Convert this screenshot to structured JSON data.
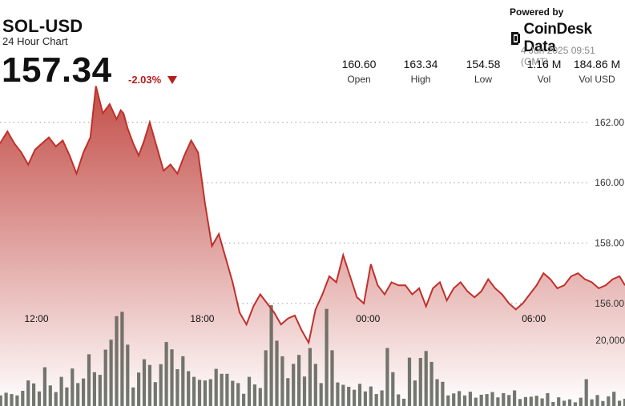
{
  "header": {
    "pair": "SOL-USD",
    "subtitle": "24 Hour Chart",
    "price": "157.34",
    "change": "-2.03%",
    "powered_by": "Powered by",
    "brand": "CoinDesk Data",
    "timestamp": "4 Jun 2025 09:51 (GMT)",
    "stats": [
      {
        "value": "160.60",
        "label": "Open"
      },
      {
        "value": "163.34",
        "label": "High"
      },
      {
        "value": "154.58",
        "label": "Low"
      },
      {
        "value": "1.16 M",
        "label": "Vol"
      },
      {
        "value": "184.86 M",
        "label": "Vol USD"
      }
    ]
  },
  "colors": {
    "line": "#c0302b",
    "fill_top": "#c0453f",
    "fill_bottom": "#ffffff",
    "bars": "#5a5f56",
    "down": "#b51e1e"
  },
  "chart_data": {
    "type": "line",
    "price_axis": {
      "ticks": [
        162,
        160,
        158,
        156
      ],
      "tick_labels": [
        "162.00",
        "160.00",
        "158.00",
        "156.00"
      ],
      "ylim": [
        152.6,
        163.4
      ]
    },
    "volume_axis": {
      "tick_labels": [
        "20,000"
      ],
      "ticks": [
        20000
      ],
      "ylim": [
        0,
        50000
      ]
    },
    "x_ticks": [
      {
        "hour": 2,
        "label": "12:00"
      },
      {
        "hour": 8,
        "label": "18:00"
      },
      {
        "hour": 14,
        "label": "00:00"
      },
      {
        "hour": 20,
        "label": "06:00"
      }
    ],
    "x_range_hours": [
      0.68,
      23.3
    ],
    "price_series": {
      "name": "Price",
      "x": [
        0.68,
        0.95,
        1.2,
        1.45,
        1.7,
        1.95,
        2.2,
        2.45,
        2.7,
        2.95,
        3.2,
        3.45,
        3.7,
        3.95,
        4.15,
        4.4,
        4.65,
        4.9,
        5.05,
        5.15,
        5.3,
        5.5,
        5.7,
        5.9,
        6.1,
        6.35,
        6.6,
        6.85,
        7.1,
        7.35,
        7.6,
        7.85,
        8.1,
        8.35,
        8.6,
        8.85,
        9.1,
        9.35,
        9.6,
        9.85,
        10.1,
        10.35,
        10.6,
        10.85,
        11.1,
        11.35,
        11.6,
        11.85,
        12.1,
        12.35,
        12.6,
        12.85,
        13.1,
        13.35,
        13.6,
        13.85,
        14.1,
        14.35,
        14.6,
        14.85,
        15.1,
        15.35,
        15.6,
        15.85,
        16.1,
        16.35,
        16.6,
        16.85,
        17.1,
        17.35,
        17.6,
        17.85,
        18.1,
        18.35,
        18.6,
        18.85,
        19.1,
        19.35,
        19.6,
        19.85,
        20.1,
        20.35,
        20.6,
        20.85,
        21.1,
        21.35,
        21.6,
        21.85,
        22.1,
        22.35,
        22.6,
        22.85,
        23.1,
        23.3
      ],
      "values": [
        161.3,
        161.7,
        161.3,
        161.0,
        160.6,
        161.1,
        161.3,
        161.5,
        161.2,
        161.4,
        160.9,
        160.3,
        161.0,
        161.5,
        163.2,
        162.3,
        162.6,
        162.1,
        162.4,
        162.3,
        161.8,
        161.3,
        160.9,
        161.4,
        162.0,
        161.2,
        160.4,
        160.6,
        160.3,
        160.9,
        161.4,
        161.0,
        159.3,
        157.9,
        158.3,
        157.5,
        156.7,
        155.7,
        155.3,
        155.9,
        156.3,
        156.0,
        155.7,
        155.3,
        155.5,
        155.6,
        155.1,
        154.7,
        155.8,
        156.3,
        156.9,
        156.7,
        157.6,
        156.9,
        156.2,
        156.0,
        157.3,
        156.6,
        156.3,
        156.7,
        156.6,
        156.6,
        156.3,
        156.5,
        155.9,
        156.5,
        156.7,
        156.1,
        156.5,
        156.7,
        156.4,
        156.2,
        156.4,
        156.8,
        156.5,
        156.3,
        156.0,
        155.8,
        156.0,
        156.3,
        156.6,
        157.0,
        156.8,
        156.5,
        156.6,
        156.9,
        157.0,
        156.8,
        156.7,
        156.5,
        156.6,
        156.8,
        156.9,
        156.6
      ]
    },
    "volume_series": {
      "name": "Vol",
      "x": [
        0.7,
        0.9,
        1.1,
        1.3,
        1.5,
        1.7,
        1.9,
        2.1,
        2.3,
        2.5,
        2.7,
        2.9,
        3.1,
        3.3,
        3.5,
        3.7,
        3.9,
        4.1,
        4.3,
        4.5,
        4.7,
        4.9,
        5.1,
        5.3,
        5.5,
        5.7,
        5.9,
        6.1,
        6.3,
        6.5,
        6.7,
        6.9,
        7.1,
        7.3,
        7.5,
        7.7,
        7.9,
        8.1,
        8.3,
        8.5,
        8.7,
        8.9,
        9.1,
        9.3,
        9.5,
        9.7,
        9.9,
        10.1,
        10.3,
        10.5,
        10.7,
        10.9,
        11.1,
        11.3,
        11.5,
        11.7,
        11.9,
        12.1,
        12.3,
        12.5,
        12.7,
        12.9,
        13.1,
        13.3,
        13.5,
        13.7,
        13.9,
        14.1,
        14.3,
        14.5,
        14.7,
        14.9,
        15.1,
        15.3,
        15.5,
        15.7,
        15.9,
        16.1,
        16.3,
        16.5,
        16.7,
        16.9,
        17.1,
        17.3,
        17.5,
        17.7,
        17.9,
        18.1,
        18.3,
        18.5,
        18.7,
        18.9,
        19.1,
        19.3,
        19.5,
        19.7,
        19.9,
        20.1,
        20.3,
        20.5,
        20.7,
        20.9,
        21.1,
        21.3,
        21.5,
        21.7,
        21.9,
        22.1,
        22.3,
        22.5,
        22.7,
        22.9,
        23.1,
        23.3
      ],
      "values": [
        3200,
        4000,
        3600,
        3200,
        4600,
        7700,
        6800,
        4400,
        11700,
        6200,
        4200,
        8800,
        5600,
        11300,
        6900,
        8300,
        15600,
        10200,
        9400,
        17000,
        20000,
        27100,
        28400,
        18500,
        5600,
        10100,
        14100,
        12400,
        7200,
        12600,
        19300,
        17100,
        11100,
        15000,
        10500,
        8800,
        7900,
        7700,
        8100,
        11200,
        9700,
        9700,
        7600,
        6900,
        3700,
        8800,
        6500,
        5400,
        16800,
        30400,
        19700,
        15000,
        8400,
        12700,
        15400,
        8900,
        17500,
        12700,
        6900,
        29300,
        16800,
        7100,
        6400,
        5800,
        4900,
        6700,
        4400,
        5900,
        3600,
        4700,
        17500,
        10200,
        3500,
        2200,
        14600,
        7700,
        14500,
        16600,
        13300,
        8100,
        7300,
        3200,
        3800,
        4500,
        3200,
        4300,
        2500,
        3400,
        3600,
        4200,
        2600,
        3900,
        3300,
        4700,
        2100,
        2700,
        2800,
        3100,
        2300,
        3900,
        1200,
        2600,
        1600,
        2000,
        1100,
        2500,
        8100,
        2000,
        3300,
        1500,
        2900,
        4300,
        1600,
        2200
      ]
    }
  }
}
